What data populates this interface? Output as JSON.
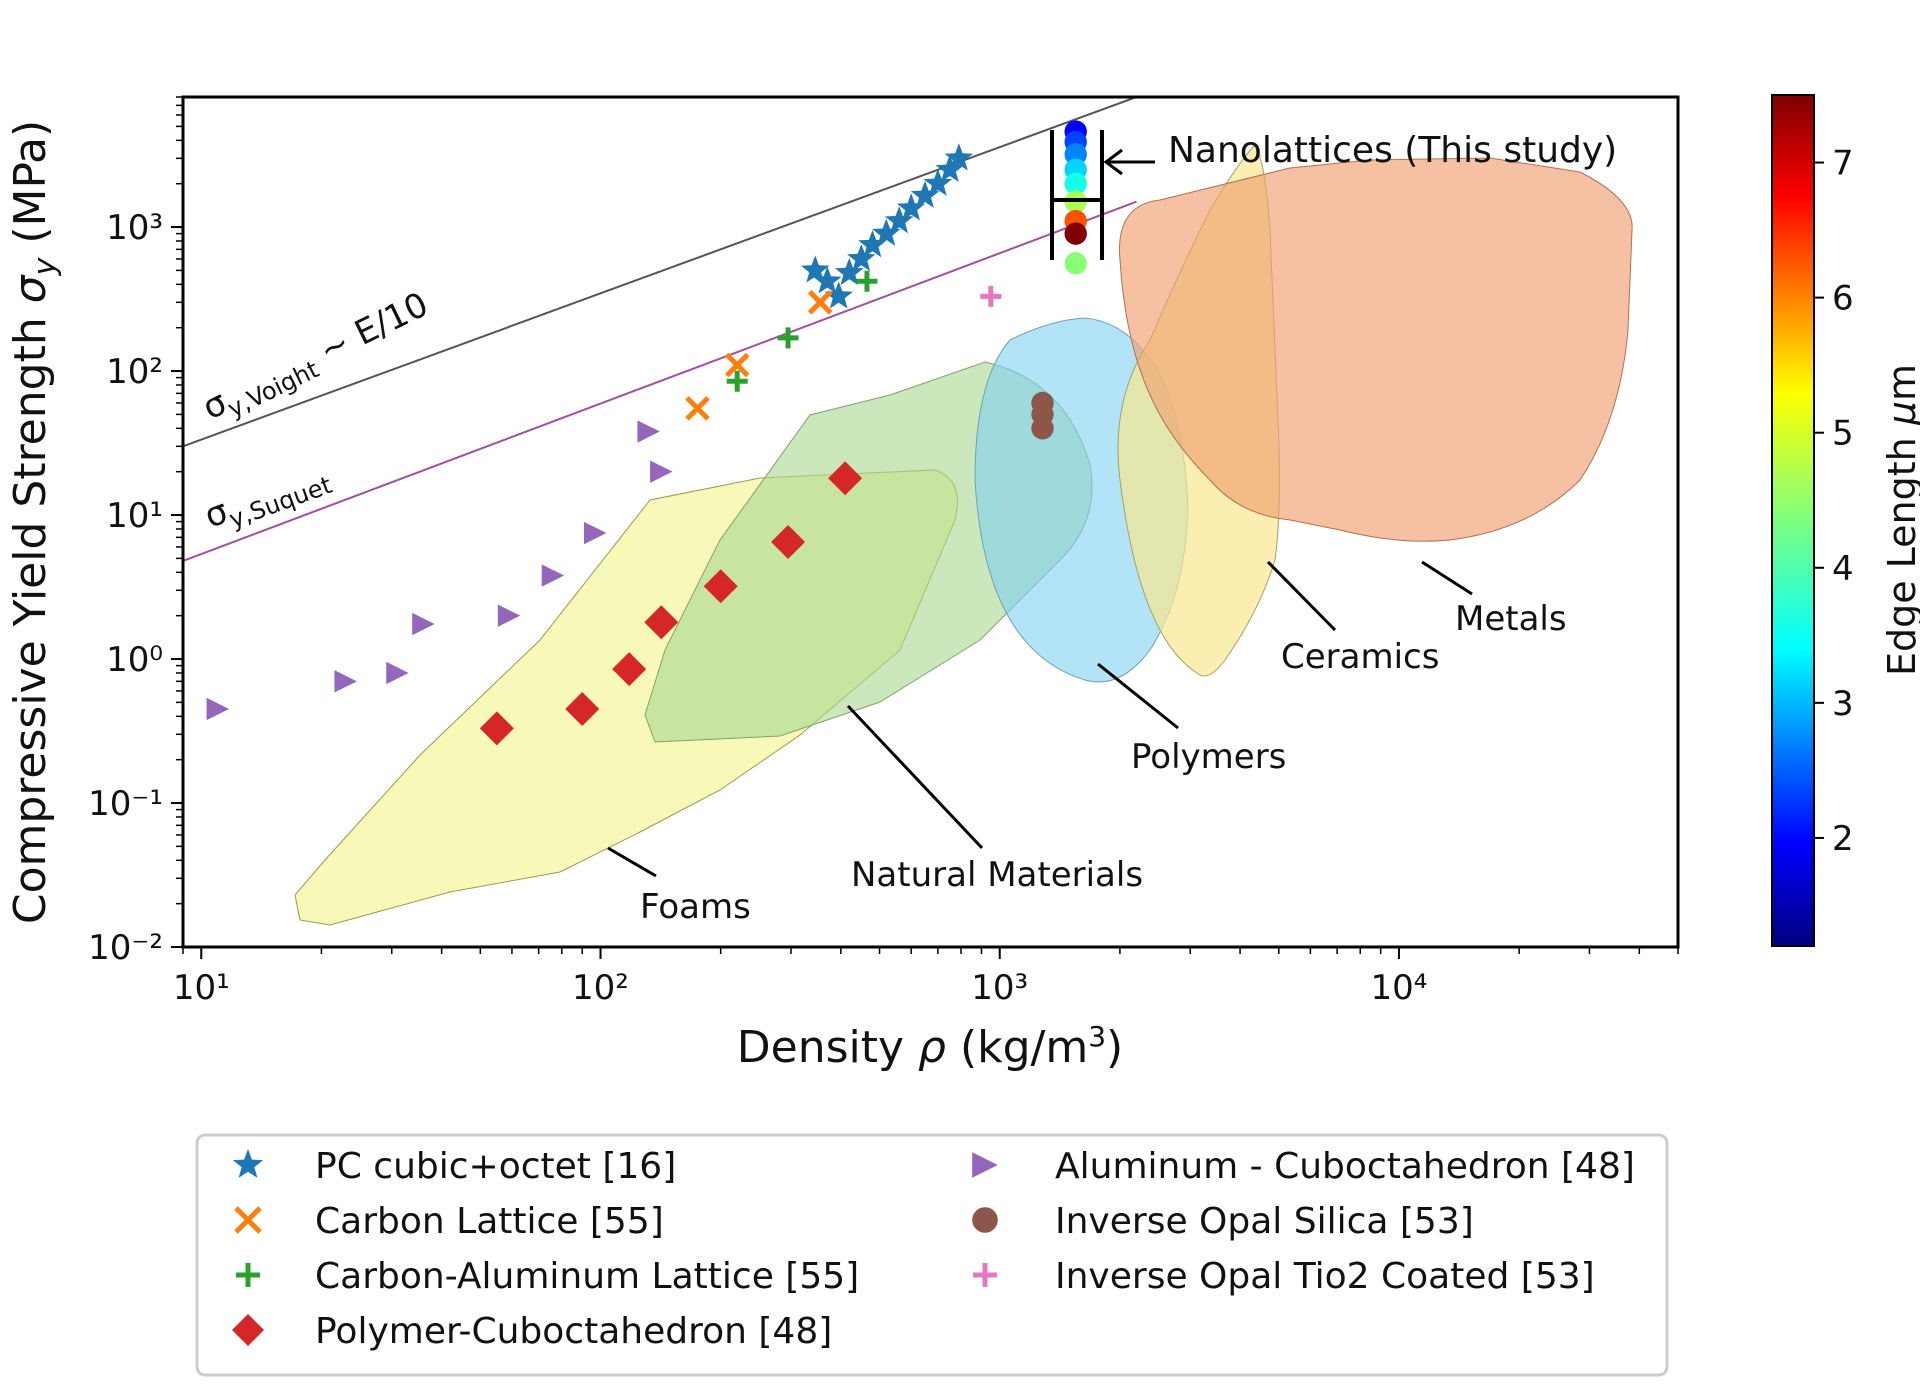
{
  "chart_data": {
    "type": "scatter",
    "title": "",
    "xlabel": "Density ρ (kg/m³)",
    "ylabel": "Compressive Yield Strength σy (MPa)",
    "xscale": "log",
    "yscale": "log",
    "xlim": [
      9,
      50000
    ],
    "ylim": [
      0.01,
      8000
    ],
    "x_ticks": [
      "10¹",
      "10²",
      "10³",
      "10⁴"
    ],
    "y_ticks": [
      "10⁻²",
      "10⁻¹",
      "10⁰",
      "10¹",
      "10²",
      "10³"
    ],
    "grid": false,
    "legend_position": "bottom",
    "colorbar": {
      "label": "Edge Length μm",
      "range": [
        1.2,
        7.5
      ],
      "ticks": [
        "2",
        "3",
        "4",
        "5",
        "6",
        "7"
      ],
      "colormap": "jet"
    },
    "reference_lines": [
      {
        "name": "σy,Voight ~ E/10",
        "x": [
          9,
          2200
        ],
        "y": [
          30,
          8000
        ],
        "color": "#555555"
      },
      {
        "name": "σy,Suquet",
        "x": [
          9,
          2200
        ],
        "y": [
          4.8,
          1500
        ],
        "color": "#a050a0"
      }
    ],
    "regions": [
      {
        "name": "Foams",
        "label": "Foams",
        "color": "#f5f5a0"
      },
      {
        "name": "Natural Materials",
        "label": "Natural Materials",
        "color": "#a8d890"
      },
      {
        "name": "Polymers",
        "label": "Polymers",
        "color": "#80d0f0"
      },
      {
        "name": "Ceramics",
        "label": "Ceramics",
        "color": "#f8e890"
      },
      {
        "name": "Metals",
        "label": "Metals",
        "color": "#f0a070"
      }
    ],
    "annotation": "Nanolattices (This study)",
    "series": [
      {
        "name": "PC cubic+octet [16]",
        "marker": "star",
        "color": "#1f77b4",
        "x": [
          345,
          370,
          395,
          420,
          450,
          480,
          520,
          560,
          600,
          650,
          700,
          750,
          790
        ],
        "y": [
          500,
          420,
          330,
          480,
          600,
          750,
          900,
          1100,
          1350,
          1650,
          2000,
          2500,
          3000
        ]
      },
      {
        "name": "Carbon Lattice [55]",
        "marker": "x",
        "color": "#ff7f0e",
        "x": [
          175,
          220,
          355
        ],
        "y": [
          55,
          110,
          300
        ]
      },
      {
        "name": "Carbon-Aluminum Lattice [55]",
        "marker": "plus",
        "color": "#2ca02c",
        "x": [
          220,
          295,
          465
        ],
        "y": [
          85,
          170,
          420
        ]
      },
      {
        "name": "Polymer-Cuboctahedron [48]",
        "marker": "diamond",
        "color": "#d62728",
        "x": [
          55,
          90,
          118,
          142,
          200,
          295,
          410
        ],
        "y": [
          0.33,
          0.45,
          0.85,
          1.8,
          3.2,
          6.5,
          18
        ]
      },
      {
        "name": "Aluminum - Cuboctahedron [48]",
        "marker": "triangle-right",
        "color": "#9467bd",
        "x": [
          11,
          23,
          31,
          36,
          59,
          76,
          97,
          132,
          142
        ],
        "y": [
          0.45,
          0.7,
          0.8,
          1.75,
          2.0,
          3.8,
          7.5,
          38,
          20
        ]
      },
      {
        "name": "Inverse Opal Silica [53]",
        "marker": "circle",
        "color": "#8c564b",
        "x": [
          1280,
          1280,
          1280
        ],
        "y": [
          60,
          50,
          40
        ]
      },
      {
        "name": "Inverse Opal Tio2 Coated [53]",
        "marker": "plus",
        "color": "#e377c2",
        "x": [
          950
        ],
        "y": [
          330
        ]
      },
      {
        "name": "Nanolattices (This study)",
        "marker": "circle",
        "colormap_series": true,
        "x": [
          1550,
          1550,
          1550,
          1550,
          1550,
          1550,
          1550,
          1550,
          1550
        ],
        "y": [
          4600,
          3900,
          3200,
          2500,
          2000,
          1500,
          1100,
          900,
          560
        ],
        "edge_length": [
          2.0,
          2.4,
          2.8,
          3.3,
          3.7,
          4.6,
          6.2,
          7.5,
          4.4
        ]
      }
    ]
  }
}
